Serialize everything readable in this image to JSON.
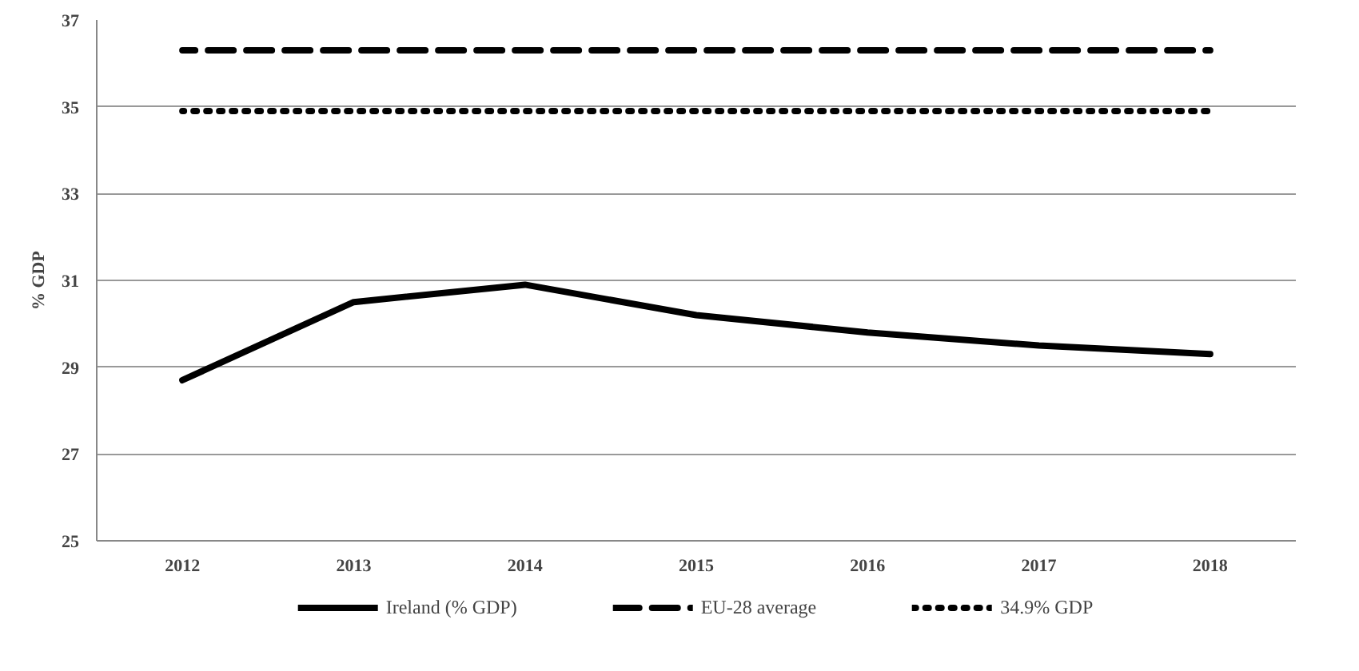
{
  "chart_data": {
    "type": "line",
    "ylabel": "% GDP",
    "categories": [
      "2012",
      "2013",
      "2014",
      "2015",
      "2016",
      "2017",
      "2018"
    ],
    "series": [
      {
        "name": "Ireland (% GDP)",
        "color": "#000000",
        "line_style": "solid",
        "values": [
          28.7,
          30.5,
          30.9,
          30.2,
          29.8,
          29.5,
          29.3
        ]
      },
      {
        "name": "EU-28 average",
        "color": "#000000",
        "line_style": "dashed",
        "values": [
          36.3,
          36.3,
          36.3,
          36.3,
          36.3,
          36.3,
          36.3
        ]
      },
      {
        "name": "34.9% GDP",
        "color": "#000000",
        "line_style": "dotted",
        "values": [
          34.9,
          34.9,
          34.9,
          34.9,
          34.9,
          34.9,
          34.9
        ]
      }
    ],
    "ylim": [
      25,
      37
    ],
    "yticks": [
      25,
      27,
      29,
      31,
      33,
      35,
      37
    ],
    "grid": "y",
    "legend": "bottom",
    "marker": "none"
  }
}
